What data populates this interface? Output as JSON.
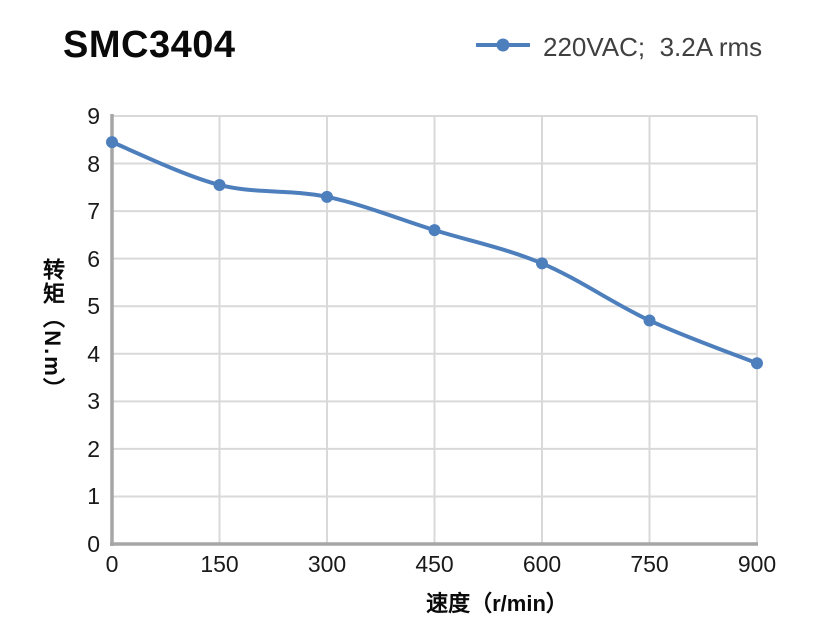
{
  "header": {
    "title": "SMC3404",
    "legend": {
      "label": "220VAC;  3.2A rms",
      "marker": "line-dot-marker",
      "color": "#4E7FBD",
      "text_color": "#404040"
    }
  },
  "chart_data": {
    "type": "line",
    "title": "SMC3404",
    "x": [
      0,
      150,
      300,
      450,
      600,
      750,
      900
    ],
    "series": [
      {
        "name": "220VAC;  3.2A rms",
        "values": [
          8.45,
          7.55,
          7.3,
          6.6,
          5.9,
          4.7,
          3.8
        ],
        "color": "#4E7FBD",
        "marker": "circle",
        "smooth": true
      }
    ],
    "xlabel": "速度（r/min）",
    "ylabel": "转矩（N.m）",
    "xlim": [
      0,
      900
    ],
    "ylim": [
      0,
      9
    ],
    "x_ticks": [
      0,
      150,
      300,
      450,
      600,
      750,
      900
    ],
    "y_ticks": [
      0,
      1,
      2,
      3,
      4,
      5,
      6,
      7,
      8,
      9
    ],
    "grid": true,
    "grid_color": "#D9D9D9",
    "axis_color": "#A6A6A6",
    "tick_color": "#1a1a1a",
    "legend_position": "top-right"
  }
}
